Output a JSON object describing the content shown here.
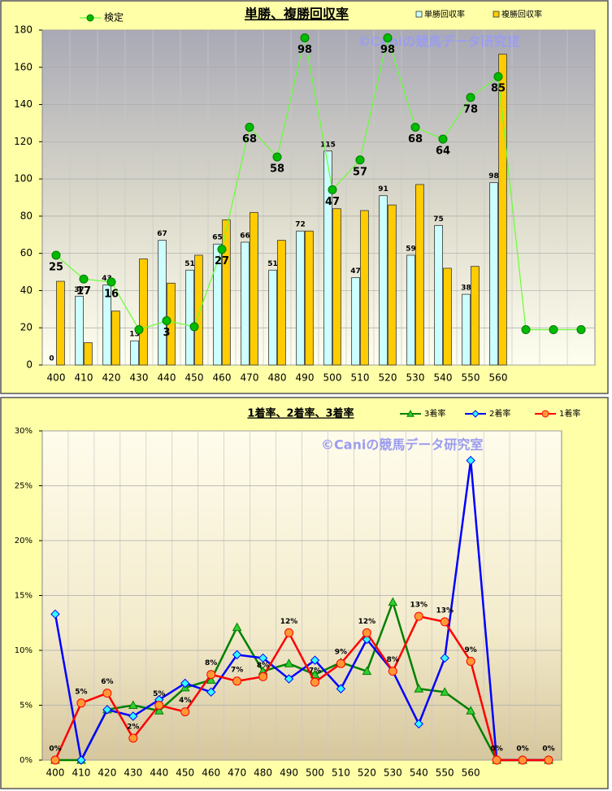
{
  "chart_data": [
    {
      "type": "bar",
      "title": "単勝、複勝回収率",
      "watermark": "©Caniの競馬データ研究室",
      "categories": [
        "400",
        "410",
        "420",
        "430",
        "440",
        "450",
        "460",
        "470",
        "480",
        "490",
        "500",
        "510",
        "520",
        "530",
        "540",
        "550",
        "560",
        null,
        null,
        null
      ],
      "ylim": [
        0,
        180
      ],
      "yticks": [
        0,
        20,
        40,
        60,
        80,
        100,
        120,
        140,
        160,
        180
      ],
      "y2lim": [
        -11.875,
        100.625
      ],
      "grid": true,
      "series": [
        {
          "name": "単勝回収率",
          "type": "bar",
          "color": "#ccffff",
          "data_labels": true,
          "values": [
            0,
            37,
            43,
            13,
            67,
            51,
            65,
            66,
            51,
            72,
            115,
            47,
            91,
            59,
            75,
            38,
            98,
            null,
            null,
            null
          ]
        },
        {
          "name": "複勝回収率",
          "type": "bar",
          "color": "#ffcc00",
          "values": [
            45,
            12,
            29,
            57,
            44,
            59,
            78,
            82,
            67,
            72,
            84,
            83,
            86,
            97,
            52,
            53,
            167,
            null,
            null,
            null
          ]
        },
        {
          "name": "検定",
          "type": "line",
          "axis": "y2",
          "color": "#66ff33",
          "marker": "circle",
          "marker_color": "#00bb00",
          "values": [
            25,
            17,
            16,
            0,
            3,
            1,
            27,
            68,
            58,
            98,
            47,
            57,
            98,
            68,
            64,
            78,
            85,
            0,
            0,
            0
          ],
          "value_labels": [
            "25",
            "17",
            "16",
            null,
            "3",
            null,
            "27",
            "68",
            "58",
            "98",
            "47",
            "57",
            "98",
            "68",
            "64",
            "78",
            "85",
            null,
            null,
            null
          ]
        }
      ]
    },
    {
      "type": "line",
      "title": "1着率、2着率、3着率",
      "watermark": "©Caniの競馬データ研究室",
      "categories": [
        "400",
        "410",
        "420",
        "430",
        "440",
        "450",
        "460",
        "470",
        "480",
        "490",
        "500",
        "510",
        "520",
        "530",
        "540",
        "550",
        "560",
        null,
        null,
        null
      ],
      "ylim": [
        0,
        30
      ],
      "yticks": [
        {
          "value": 0,
          "label": "0%"
        },
        {
          "value": 5,
          "label": "5%"
        },
        {
          "value": 10,
          "label": "10%"
        },
        {
          "value": 15,
          "label": "15%"
        },
        {
          "value": 20,
          "label": "20%"
        },
        {
          "value": 25,
          "label": "25%"
        },
        {
          "value": 30,
          "label": "30%"
        }
      ],
      "grid": true,
      "series": [
        {
          "name": "3着率",
          "color": "#008000",
          "marker": "triangle",
          "marker_color": "#33cc33",
          "values": [
            0,
            0,
            4.6,
            5.0,
            4.5,
            6.6,
            7.3,
            12.1,
            8.1,
            8.8,
            7.8,
            8.9,
            8.1,
            14.4,
            6.5,
            6.2,
            4.5,
            0,
            0,
            0
          ]
        },
        {
          "name": "2着率",
          "color": "#0000ff",
          "marker": "diamond",
          "marker_color": "#33ffff",
          "values": [
            13.3,
            0,
            4.6,
            4.0,
            5.5,
            7.0,
            6.2,
            9.6,
            9.3,
            7.4,
            9.1,
            6.5,
            11.0,
            8.1,
            3.3,
            9.3,
            27.3,
            0,
            0,
            0
          ]
        },
        {
          "name": "1着率",
          "color": "#ff0000",
          "marker": "circle",
          "marker_color": "#ff9933",
          "values": [
            0,
            5.2,
            6.1,
            2.0,
            5.0,
            4.4,
            7.8,
            7.2,
            7.6,
            11.6,
            7.1,
            8.8,
            11.6,
            8.1,
            13.1,
            12.6,
            9.0,
            0,
            0,
            0
          ],
          "value_labels": [
            "0%",
            "5%",
            "6%",
            "2%",
            "5%",
            "4%",
            "8%",
            "7%",
            "8%",
            "12%",
            "7%",
            "9%",
            "12%",
            "8%",
            "13%",
            "13%",
            "9%",
            "0%",
            "0%",
            "0%"
          ]
        }
      ]
    }
  ]
}
